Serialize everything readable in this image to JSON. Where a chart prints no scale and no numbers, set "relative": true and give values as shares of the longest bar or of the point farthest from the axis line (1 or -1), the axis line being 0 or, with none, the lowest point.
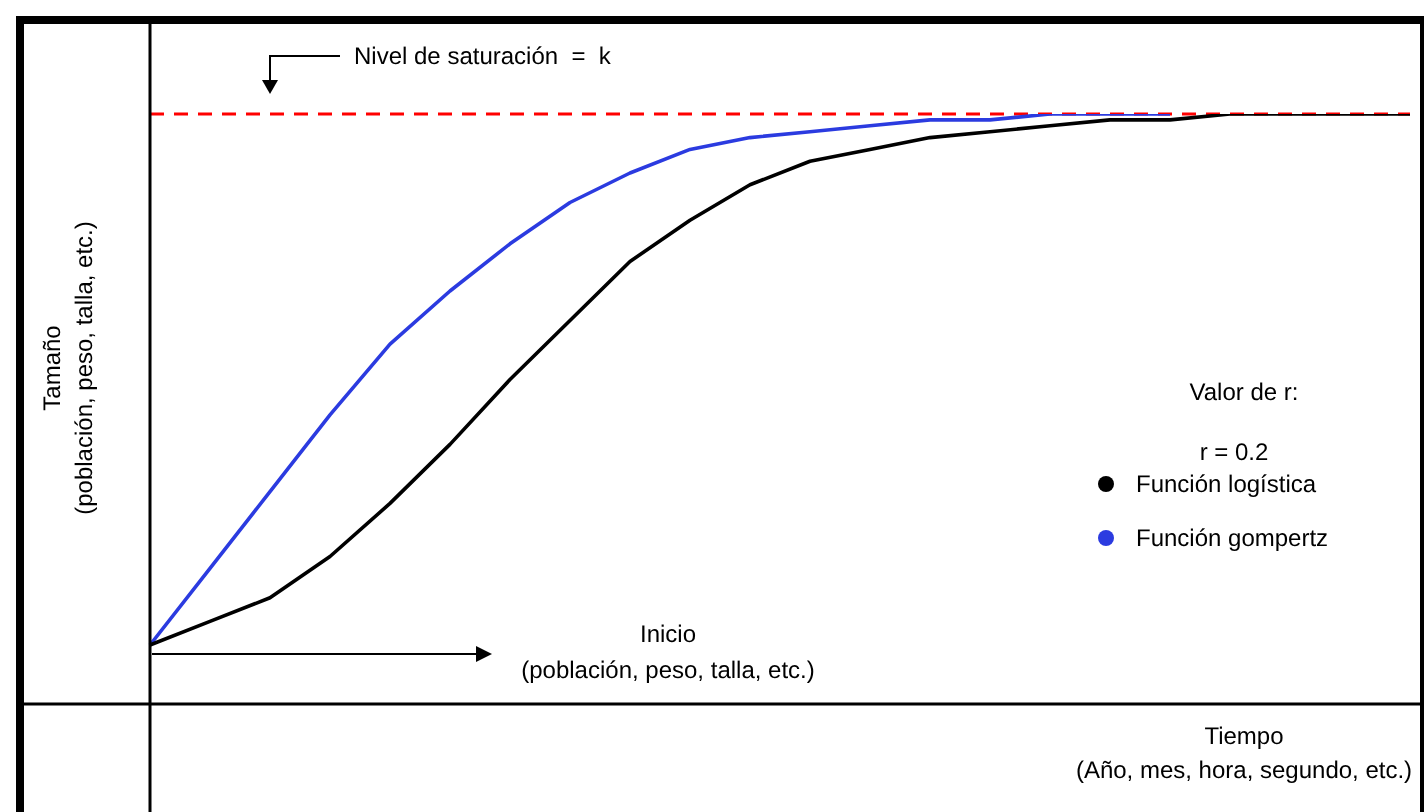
{
  "chart_data": {
    "type": "line",
    "relative": true,
    "xlabel": "Tiempo\n(Año, mes, hora, segundo, etc.)",
    "ylabel": "Tamaño\n(población, peso, talla, etc.)",
    "categories": [
      null,
      null,
      null,
      null,
      null,
      null,
      null,
      null,
      null,
      null,
      null,
      null,
      null,
      null,
      null,
      null,
      null,
      null,
      null,
      null,
      null,
      null
    ],
    "series": [
      {
        "name": "Función gompertz",
        "color": "#2b3be0",
        "values": [
          0.1,
          0.23,
          0.36,
          0.49,
          0.61,
          0.7,
          0.78,
          0.85,
          0.9,
          0.94,
          0.96,
          0.97,
          0.98,
          0.99,
          0.99,
          1.0,
          1.0,
          1.0,
          null,
          null,
          null,
          null
        ]
      },
      {
        "name": "Función logística",
        "color": "#000000",
        "values": [
          0.1,
          0.14,
          0.18,
          0.25,
          0.34,
          0.44,
          0.55,
          0.65,
          0.75,
          0.82,
          0.88,
          0.92,
          0.94,
          0.96,
          0.97,
          0.98,
          0.99,
          0.99,
          1.0,
          1.0,
          1.0,
          1.0
        ]
      }
    ],
    "ref_lines": [
      {
        "axis": "y",
        "value": 1,
        "color": "#ff0000",
        "line_style": "dashed"
      }
    ],
    "annotations": [
      "Valor de r:",
      "r = 0.2",
      "Inicio\n(población, peso, talla, etc.)",
      "Nivel de saturación  =  k"
    ],
    "legend": "right",
    "marker": "none",
    "line_style": "solid",
    "grid": false
  }
}
